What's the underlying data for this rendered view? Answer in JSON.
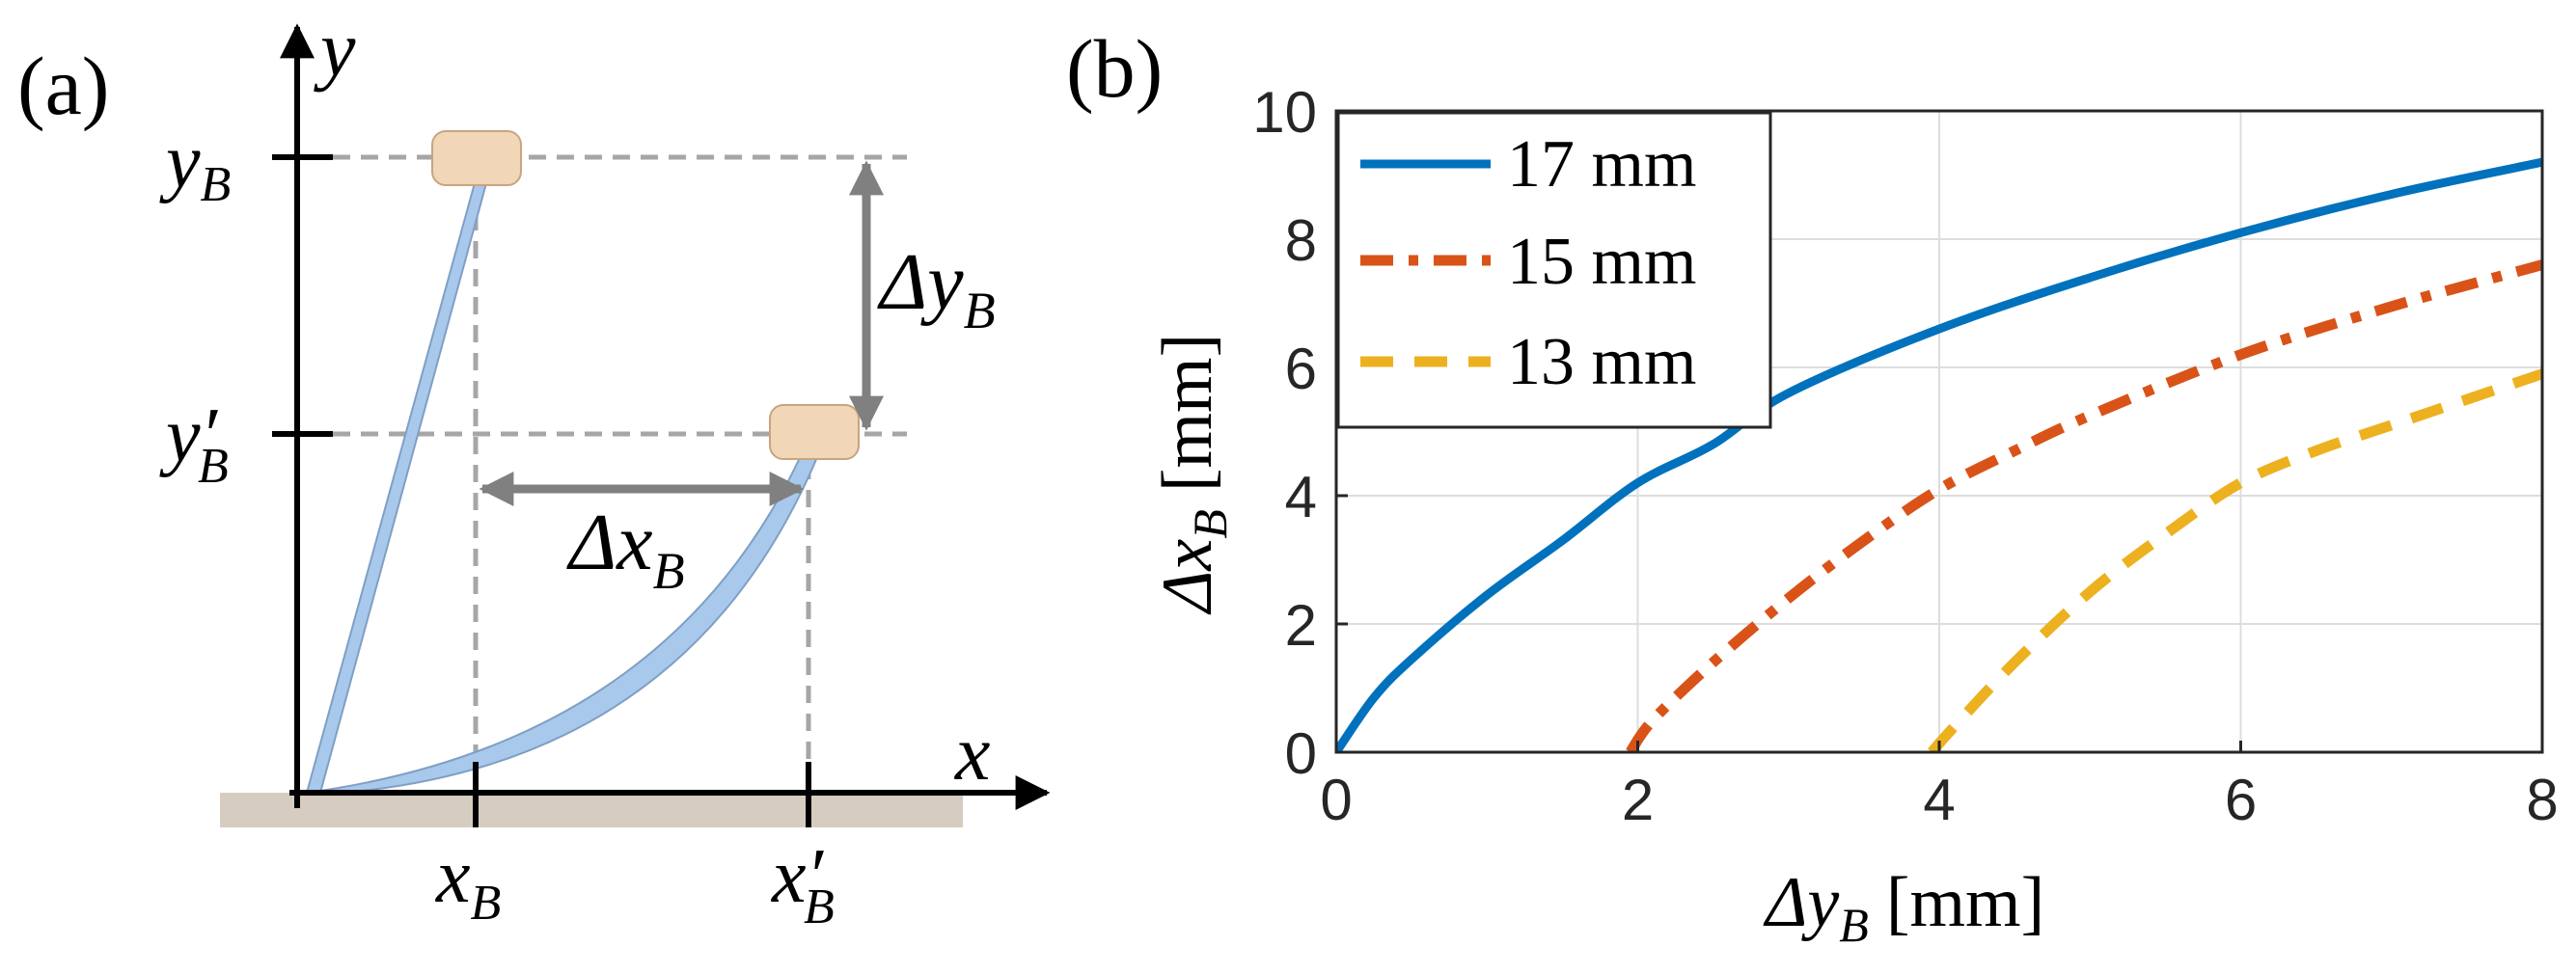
{
  "panel_a": {
    "label": "(a)",
    "axis_x": "x",
    "axis_y": "y",
    "tick_yB_main": "y",
    "tick_yB_sub": "B",
    "tick_yB2_main": "y′",
    "tick_yB2_sub": "B",
    "tick_xB_main": "x",
    "tick_xB_sub": "B",
    "tick_xB2_main": "x′",
    "tick_xB2_sub": "B",
    "delta_y_main": "Δy",
    "delta_y_sub": "B",
    "delta_x_main": "Δx",
    "delta_x_sub": "B",
    "colors": {
      "beam": "#a9c9ec",
      "beam_edge": "#7f9fc4",
      "tip": "#f1d6b8",
      "tip_edge": "#c9a47e",
      "ground": "#d7ccc0",
      "guide": "#a6a6a6",
      "arrow": "#808080"
    }
  },
  "panel_b": {
    "label": "(b)",
    "grid_color": "#dddddd",
    "legend_items": [
      {
        "label": "17 mm",
        "color": "#0072bd",
        "style": "solid"
      },
      {
        "label": "15 mm",
        "color": "#d95319",
        "style": "dashdot"
      },
      {
        "label": "13 mm",
        "color": "#edb120",
        "style": "dashed"
      }
    ]
  },
  "chart_data": {
    "type": "line",
    "title": "",
    "xlabel_main": "Δy",
    "xlabel_sub": "B",
    "xlabel_unit": "[mm]",
    "ylabel_main": "Δx",
    "ylabel_sub": "B",
    "ylabel_unit": "[mm]",
    "xlim": [
      0,
      8
    ],
    "ylim": [
      0,
      10
    ],
    "xticks": [
      0,
      2,
      4,
      6,
      8
    ],
    "yticks": [
      0,
      2,
      4,
      6,
      8,
      10
    ],
    "grid": true,
    "legend_position": "top-left",
    "series": [
      {
        "name": "17 mm",
        "x": [
          0,
          0.25,
          0.5,
          1,
          1.5,
          2,
          2.5,
          3,
          4,
          5,
          6,
          7,
          8
        ],
        "y": [
          0,
          0.85,
          1.45,
          2.45,
          3.3,
          4.2,
          4.8,
          5.6,
          6.6,
          7.4,
          8.1,
          8.7,
          9.2
        ]
      },
      {
        "name": "15 mm",
        "x": [
          1.95,
          2.1,
          2.5,
          3,
          3.5,
          4,
          4.5,
          5,
          6,
          7,
          8
        ],
        "y": [
          0,
          0.5,
          1.4,
          2.4,
          3.3,
          4.1,
          4.7,
          5.25,
          6.2,
          6.95,
          7.6
        ]
      },
      {
        "name": "13 mm",
        "x": [
          3.95,
          4.1,
          4.5,
          5,
          5.5,
          6,
          6.5,
          7,
          7.5,
          8
        ],
        "y": [
          0,
          0.4,
          1.4,
          2.5,
          3.4,
          4.2,
          4.7,
          5.1,
          5.5,
          5.9
        ]
      }
    ]
  }
}
